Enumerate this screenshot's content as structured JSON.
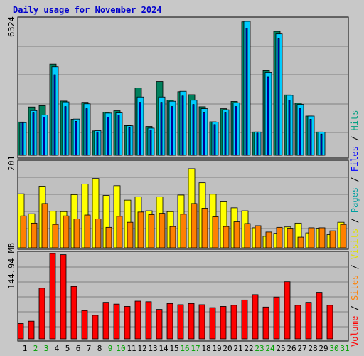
{
  "chart_data": {
    "type": "bar",
    "title": "Daily usage for November 2024",
    "categories": [
      "1",
      "2",
      "3",
      "4",
      "5",
      "6",
      "7",
      "8",
      "9",
      "10",
      "11",
      "12",
      "13",
      "14",
      "15",
      "16",
      "17",
      "18",
      "19",
      "20",
      "21",
      "22",
      "23",
      "24",
      "25",
      "26",
      "27",
      "28",
      "29",
      "30",
      "31"
    ],
    "weekend_days": [
      "2",
      "3",
      "9",
      "10",
      "16",
      "17",
      "23",
      "24",
      "30",
      "31"
    ],
    "panels": [
      {
        "name": "hits-files-pages",
        "ymax_label": "6324",
        "ylim": [
          0,
          6324
        ],
        "series": [
          {
            "name": "Hits",
            "color": "#00ccff",
            "values": [
              1540,
              2110,
              1900,
              4180,
              2520,
              1710,
              2430,
              1160,
              1990,
              2000,
              1390,
              2750,
              1280,
              2750,
              2550,
              3020,
              2600,
              2200,
              1560,
              2150,
              2480,
              6324,
              1100,
              3920,
              5730,
              2830,
              2400,
              1850,
              1090,
              0,
              0
            ]
          },
          {
            "name": "Files",
            "color": "#0000ff",
            "values": [
              1540,
              2000,
              1800,
              3800,
              2300,
              1600,
              2200,
              1100,
              1800,
              1900,
              1300,
              2500,
              1200,
              2500,
              2300,
              2800,
              2400,
              2000,
              1450,
              2000,
              2300,
              6000,
              1050,
              3700,
              5500,
              2600,
              2200,
              1700,
              1000,
              0,
              0
            ]
          },
          {
            "name": "Pages",
            "color": "#00805c",
            "values": [
              1570,
              2280,
              2340,
              4300,
              2560,
              1700,
              2500,
              1150,
              2030,
              2100,
              1400,
              3180,
              1360,
              3480,
              2600,
              3000,
              2860,
              2290,
              1580,
              2200,
              2540,
              6300,
              1100,
              3990,
              5850,
              2850,
              2460,
              1850,
              1100,
              0,
              0
            ]
          }
        ]
      },
      {
        "name": "visits-sites",
        "ymax_label": "201",
        "ylim": [
          0,
          201
        ],
        "series": [
          {
            "name": "Visits",
            "color": "#ffff00",
            "values": [
              127,
              80,
              145,
              86,
              85,
              125,
              150,
              163,
              123,
              146,
              112,
              120,
              87,
              120,
              85,
              124,
              186,
              153,
              126,
              108,
              94,
              87,
              47,
              27,
              34,
              49,
              58,
              35,
              46,
              31,
              60
            ]
          },
          {
            "name": "Sites",
            "color": "#ff8000",
            "values": [
              75,
              58,
              104,
              55,
              75,
              68,
              77,
              68,
              48,
              74,
              60,
              84,
              78,
              81,
              50,
              79,
              104,
              93,
              73,
              50,
              61,
              57,
              52,
              37,
              48,
              46,
              25,
              47,
              47,
              40,
              55
            ]
          }
        ]
      },
      {
        "name": "volume",
        "ymax_label": "144.94 MB",
        "ylim": [
          0,
          144.94
        ],
        "series": [
          {
            "name": "Volume",
            "color": "#ff0000",
            "values": [
              26,
              30,
              86,
              144.94,
              143,
              89,
              48,
              40,
              62,
              59,
              55,
              64,
              63,
              50,
              60,
              58,
              60,
              58,
              53,
              55,
              57,
              66,
              75,
              54,
              71,
              97,
              57,
              62,
              79,
              57,
              0
            ]
          }
        ]
      }
    ],
    "legend": [
      {
        "label": "Volume",
        "color": "#ff0000"
      },
      {
        "label": "Sites",
        "color": "#ff8000"
      },
      {
        "label": "Visits",
        "color": "#e0e000"
      },
      {
        "label": "Pages",
        "color": "#00a0a0"
      },
      {
        "label": "Files",
        "color": "#0000ff"
      },
      {
        "label": "Hits",
        "color": "#00a080"
      }
    ],
    "legend_separator": " / ",
    "grid": true,
    "tick_color_weekday": "#000000",
    "tick_color_weekend": "#00a000"
  }
}
